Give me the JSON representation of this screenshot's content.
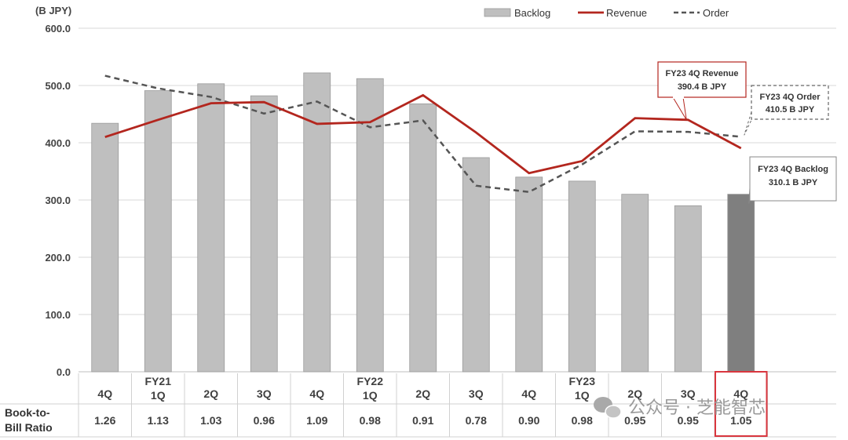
{
  "chart_data": {
    "type": "bar+line",
    "unit_label": "(B JPY)",
    "ylim": [
      0,
      600
    ],
    "yticks": [
      "0.0",
      "100.0",
      "200.0",
      "300.0",
      "400.0",
      "500.0",
      "600.0"
    ],
    "ytick_values": [
      0,
      100,
      200,
      300,
      400,
      500,
      600
    ],
    "categories": [
      {
        "fy": "",
        "q": "4Q"
      },
      {
        "fy": "FY21",
        "q": "1Q"
      },
      {
        "fy": "",
        "q": "2Q"
      },
      {
        "fy": "",
        "q": "3Q"
      },
      {
        "fy": "",
        "q": "4Q"
      },
      {
        "fy": "FY22",
        "q": "1Q"
      },
      {
        "fy": "",
        "q": "2Q"
      },
      {
        "fy": "",
        "q": "3Q"
      },
      {
        "fy": "",
        "q": "4Q"
      },
      {
        "fy": "FY23",
        "q": "1Q"
      },
      {
        "fy": "",
        "q": "2Q"
      },
      {
        "fy": "",
        "q": "3Q"
      },
      {
        "fy": "",
        "q": "4Q"
      }
    ],
    "series": [
      {
        "name": "Backlog",
        "kind": "bar",
        "color": "#bfbfbf",
        "highlight_color": "#7f7f7f",
        "values": [
          434,
          491,
          503,
          482,
          522,
          512,
          468,
          374,
          340,
          333,
          310,
          290,
          310.1
        ]
      },
      {
        "name": "Revenue",
        "kind": "line",
        "color": "#b3261e",
        "values": [
          410,
          440,
          469,
          471,
          433,
          436,
          483,
          418,
          347,
          368,
          443,
          440,
          390.4
        ]
      },
      {
        "name": "Order",
        "kind": "dashed-line",
        "color": "#555555",
        "values": [
          517,
          495,
          480,
          451,
          472,
          427,
          439,
          325,
          314,
          362,
          420,
          419,
          410.5
        ]
      }
    ],
    "legend": [
      "Backlog",
      "Revenue",
      "Order"
    ],
    "legend_position": "top-right",
    "annotations": [
      {
        "title": "FY23 4Q Revenue",
        "value": "390.4 B JPY",
        "series": "Revenue"
      },
      {
        "title": "FY23 4Q Order",
        "value": "410.5 B JPY",
        "series": "Order"
      },
      {
        "title": "FY23 4Q Backlog",
        "value": "310.1 B JPY",
        "series": "Backlog"
      }
    ],
    "ratio_table": {
      "label_line1": "Book-to-",
      "label_line2": "Bill Ratio",
      "values": [
        "1.26",
        "1.13",
        "1.03",
        "0.96",
        "1.09",
        "0.98",
        "0.91",
        "0.78",
        "0.90",
        "0.98",
        "0.95",
        "0.95",
        "1.05"
      ]
    },
    "highlight_index": 12,
    "highlight_color": "#d9363e"
  },
  "watermark": "公众号 · 芝能智芯"
}
